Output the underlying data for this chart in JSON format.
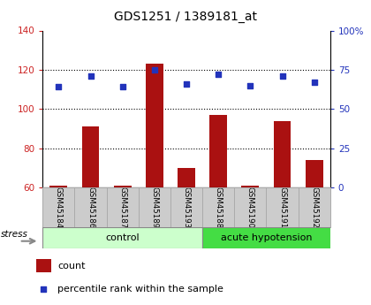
{
  "title": "GDS1251 / 1389181_at",
  "samples": [
    "GSM45184",
    "GSM45186",
    "GSM45187",
    "GSM45189",
    "GSM45193",
    "GSM45188",
    "GSM45190",
    "GSM45191",
    "GSM45192"
  ],
  "counts": [
    61,
    91,
    61,
    123,
    70,
    97,
    61,
    94,
    74
  ],
  "percentile_ranks": [
    64,
    71,
    64,
    75,
    66,
    72,
    65,
    71,
    67
  ],
  "groups": [
    "control",
    "control",
    "control",
    "control",
    "control",
    "acute hypotension",
    "acute hypotension",
    "acute hypotension",
    "acute hypotension"
  ],
  "left_ylim": [
    60,
    140
  ],
  "left_yticks": [
    60,
    80,
    100,
    120,
    140
  ],
  "right_ylim": [
    0,
    100
  ],
  "right_ytick_vals": [
    0,
    25,
    50,
    75,
    100
  ],
  "right_ytick_labels": [
    "0",
    "25",
    "50",
    "75",
    "100%"
  ],
  "bar_color": "#aa1111",
  "scatter_color": "#2233bb",
  "control_color": "#ccffcc",
  "hypotension_color": "#44dd44",
  "left_tick_color": "#cc2222",
  "right_tick_color": "#2233bb",
  "legend_count_color": "#aa1111",
  "legend_percentile_color": "#2233bb",
  "n_control": 5,
  "n_hypotension": 4
}
